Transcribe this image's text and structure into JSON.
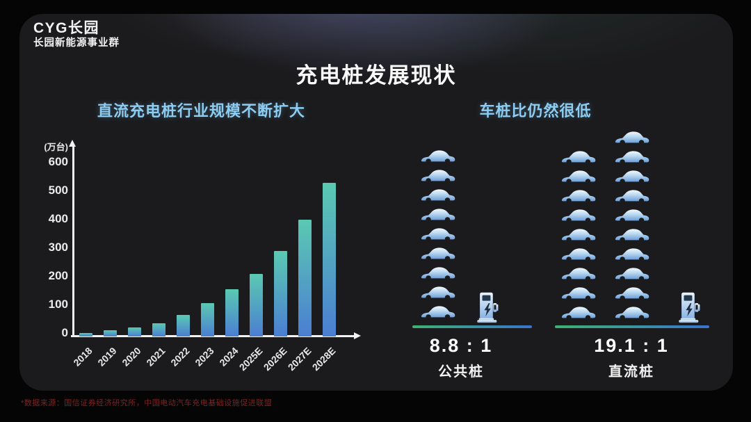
{
  "page": {
    "logo_line1": "CYG长园",
    "logo_line2": "长园新能源事业群",
    "title": "充电桩发展现状",
    "footnote": "*数据来源：国信证券经济研究所，中国电动汽车充电基础设施促进联盟"
  },
  "left_panel": {
    "subtitle": "直流充电桩行业规模不断扩大"
  },
  "right_panel": {
    "subtitle": "车桩比仍然很低",
    "groups": [
      {
        "ratio": "8.8 : 1",
        "label": "公共桩",
        "car_columns": [
          9
        ]
      },
      {
        "ratio": "19.1 : 1",
        "label": "直流桩",
        "car_columns": [
          9,
          10
        ]
      }
    ]
  },
  "chart_data": {
    "type": "bar",
    "title": "直流充电桩行业规模不断扩大",
    "unit_label": "(万台)",
    "categories": [
      "2018",
      "2019",
      "2020",
      "2021",
      "2022",
      "2023",
      "2024",
      "2025E",
      "2026E",
      "2027E",
      "2028E"
    ],
    "values": [
      12,
      21,
      31,
      47,
      76,
      118,
      165,
      220,
      300,
      410,
      540
    ],
    "xlabel": "",
    "ylabel": "万台",
    "ylim": [
      0,
      600
    ],
    "ytick_step": 100,
    "grid": false,
    "legend": false,
    "bar_gradient_top": "#5bc9b2",
    "bar_gradient_bottom": "#4b7ed2"
  },
  "colors": {
    "accent_text": "#8ccdf1",
    "axis": "#f2f2f2",
    "ratio_line_green": "#3db271",
    "ratio_line_blue": "#3a74cc",
    "footnote_red": "#7d2424",
    "slide_bg": "#1b1b1d"
  }
}
